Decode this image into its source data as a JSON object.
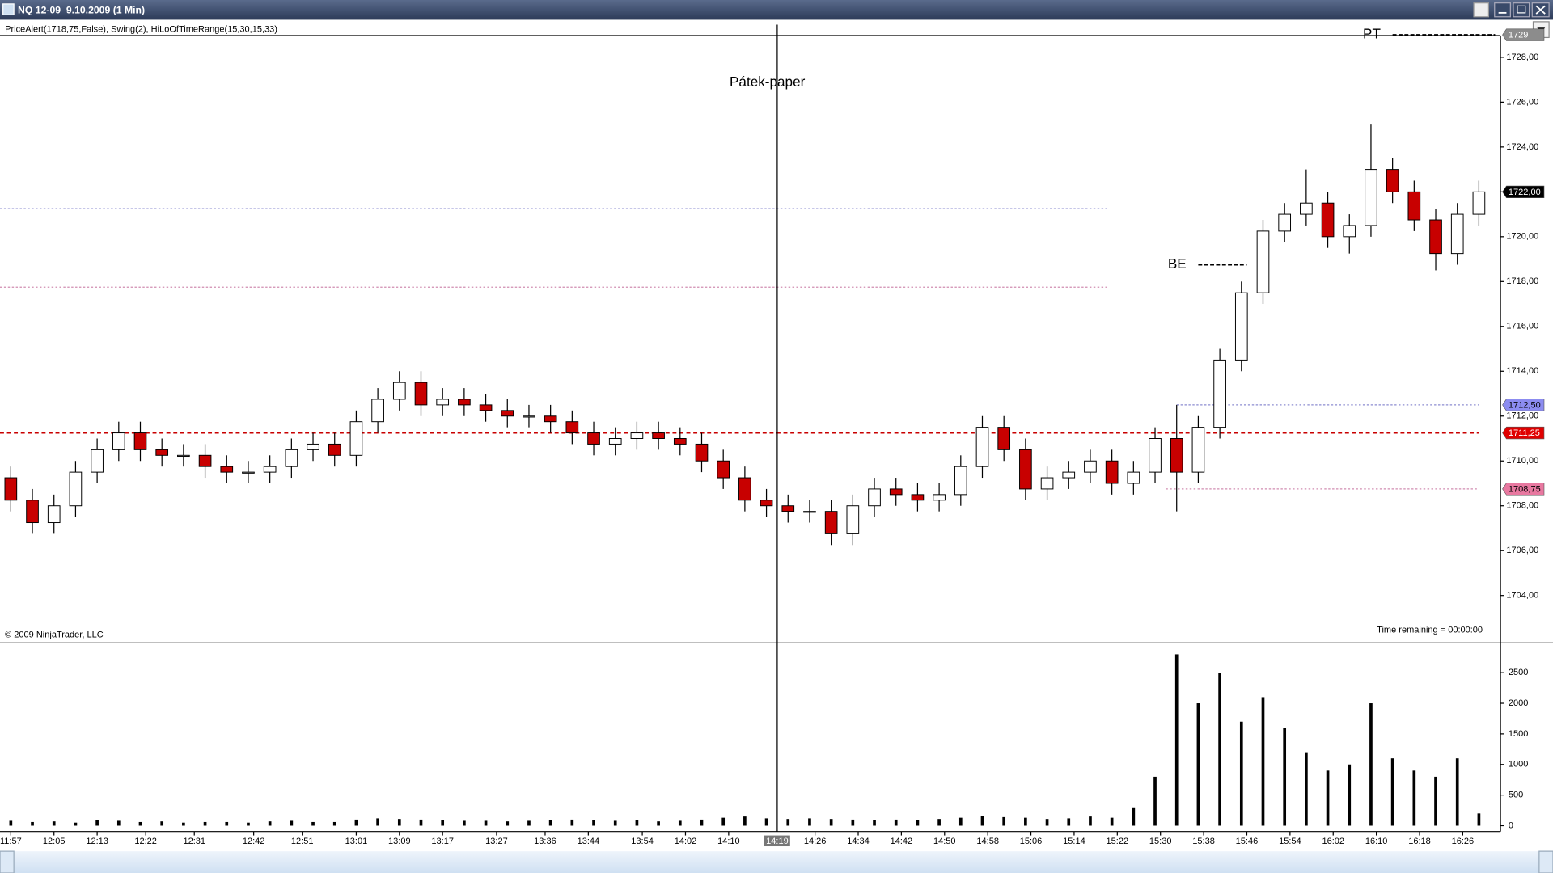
{
  "chart_data": {
    "type": "candlestick",
    "title": "NQ 12-09  9.10.2009 (1 Min)",
    "subtitle": "PriceAlert(1718,75,False), Swing(2), HiLoOfTimeRange(15,30,15,33)",
    "annotation": "Pátek-paper",
    "copyright": "© 2009 NinjaTrader, LLC",
    "time_remaining": "Time remaining = 00:00:00",
    "up_color": "#ffffff",
    "down_color": "#c80000",
    "x": [
      "11:57",
      "12:01",
      "12:05",
      "12:09",
      "12:13",
      "12:17",
      "12:21",
      "12:25",
      "12:29",
      "12:33",
      "12:37",
      "12:41",
      "12:45",
      "12:49",
      "12:53",
      "12:57",
      "13:01",
      "13:05",
      "13:09",
      "13:13",
      "13:17",
      "13:21",
      "13:25",
      "13:29",
      "13:33",
      "13:37",
      "13:41",
      "13:45",
      "13:49",
      "13:53",
      "13:57",
      "14:01",
      "14:05",
      "14:09",
      "14:13",
      "14:17",
      "14:21",
      "14:25",
      "14:29",
      "14:33",
      "14:37",
      "14:41",
      "14:45",
      "14:49",
      "14:53",
      "14:57",
      "15:01",
      "15:05",
      "15:09",
      "15:13",
      "15:17",
      "15:21",
      "15:25",
      "15:29",
      "15:33",
      "15:37",
      "15:41",
      "15:45",
      "15:49",
      "15:53",
      "15:57",
      "16:01",
      "16:05",
      "16:09",
      "16:13",
      "16:17",
      "16:21",
      "16:25",
      "16:29"
    ],
    "open": [
      1709.25,
      1708.25,
      1707.25,
      1708.0,
      1709.5,
      1710.5,
      1711.25,
      1710.5,
      1710.25,
      1710.25,
      1709.75,
      1709.5,
      1709.5,
      1709.75,
      1710.5,
      1710.75,
      1710.25,
      1711.75,
      1712.75,
      1713.5,
      1712.5,
      1712.75,
      1712.5,
      1712.25,
      1712.0,
      1712.0,
      1711.75,
      1711.25,
      1710.75,
      1711.0,
      1711.25,
      1711.0,
      1710.75,
      1710.0,
      1709.25,
      1708.25,
      1708.0,
      1707.75,
      1707.75,
      1706.75,
      1708.0,
      1708.75,
      1708.5,
      1708.25,
      1708.5,
      1709.75,
      1711.5,
      1710.5,
      1708.75,
      1709.25,
      1709.5,
      1710.0,
      1709.0,
      1709.5,
      1711.0,
      1709.5,
      1711.5,
      1714.5,
      1717.5,
      1720.25,
      1721.0,
      1721.5,
      1720.0,
      1720.5,
      1723.0,
      1722.0,
      1720.75,
      1719.25,
      1721.0
    ],
    "high": [
      1709.75,
      1708.75,
      1708.5,
      1710,
      1711,
      1711.75,
      1711.75,
      1711,
      1710.75,
      1710.75,
      1710.25,
      1710,
      1710.25,
      1711,
      1711.25,
      1711.25,
      1712.25,
      1713.25,
      1714,
      1714,
      1713.25,
      1713.25,
      1713,
      1712.75,
      1712.5,
      1712.5,
      1712.25,
      1711.75,
      1711.5,
      1711.75,
      1711.75,
      1711.5,
      1711.25,
      1710.5,
      1709.75,
      1708.75,
      1708.5,
      1708.25,
      1708.25,
      1708.5,
      1709.25,
      1709.25,
      1709,
      1709,
      1710.25,
      1712,
      1712,
      1711,
      1709.75,
      1710,
      1710.5,
      1710.5,
      1710,
      1711.5,
      1712.5,
      1712,
      1715,
      1718,
      1720.75,
      1721.5,
      1723,
      1722,
      1721,
      1725,
      1723.5,
      1722.5,
      1721.25,
      1721.5,
      1722.5
    ],
    "low": [
      1707.75,
      1706.75,
      1706.75,
      1707.5,
      1709,
      1710,
      1710,
      1709.75,
      1709.75,
      1709.25,
      1709,
      1709,
      1709,
      1709.25,
      1710,
      1709.75,
      1709.75,
      1711.25,
      1712.25,
      1712,
      1712,
      1712,
      1711.75,
      1711.5,
      1711.5,
      1711.25,
      1710.75,
      1710.25,
      1710.25,
      1710.5,
      1710.5,
      1710.25,
      1709.5,
      1708.75,
      1707.75,
      1707.5,
      1707.25,
      1707.25,
      1706.25,
      1706.25,
      1707.5,
      1708,
      1707.75,
      1707.75,
      1708,
      1709.25,
      1710,
      1708.25,
      1708.25,
      1708.75,
      1709,
      1708.5,
      1708.5,
      1709,
      1707.75,
      1709,
      1711,
      1714,
      1717,
      1719.75,
      1720.5,
      1719.5,
      1719.25,
      1720,
      1721.5,
      1720.25,
      1718.5,
      1718.75,
      1720.5
    ],
    "close": [
      1708.25,
      1707.25,
      1708.0,
      1709.5,
      1710.5,
      1711.25,
      1710.5,
      1710.25,
      1710.25,
      1709.75,
      1709.5,
      1709.5,
      1709.75,
      1710.5,
      1710.75,
      1710.25,
      1711.75,
      1712.75,
      1713.5,
      1712.5,
      1712.75,
      1712.5,
      1712.25,
      1712.0,
      1712.0,
      1711.75,
      1711.25,
      1710.75,
      1711.0,
      1711.25,
      1711.0,
      1710.75,
      1710.0,
      1709.25,
      1708.25,
      1708.0,
      1707.75,
      1707.75,
      1706.75,
      1708.0,
      1708.75,
      1708.5,
      1708.25,
      1708.5,
      1709.75,
      1711.5,
      1710.5,
      1708.75,
      1709.25,
      1709.5,
      1710.0,
      1709.0,
      1709.5,
      1711.0,
      1709.5,
      1711.5,
      1714.5,
      1717.5,
      1720.25,
      1721.0,
      1721.5,
      1720.0,
      1720.5,
      1723.0,
      1722.0,
      1720.75,
      1719.25,
      1721.0,
      1722.0
    ],
    "xlim": [
      "11:55",
      "16:33"
    ],
    "xticks": [
      "11:57",
      "12:05",
      "12:13",
      "12:22",
      "12:31",
      "12:42",
      "12:51",
      "13:01",
      "13:09",
      "13:17",
      "13:27",
      "13:36",
      "13:44",
      "13:54",
      "14:02",
      "14:10",
      "14:26",
      "14:34",
      "14:42",
      "14:50",
      "14:58",
      "15:06",
      "15:14",
      "15:22",
      "15:30",
      "15:38",
      "15:46",
      "15:54",
      "16:02",
      "16:10",
      "16:18",
      "16:26"
    ],
    "ylim": [
      1701.93,
      1728.97
    ],
    "yticks": [
      {
        "value": 1704,
        "label": "1704,00"
      },
      {
        "value": 1706,
        "label": "1706,00"
      },
      {
        "value": 1708,
        "label": "1708,00"
      },
      {
        "value": 1710,
        "label": "1710,00"
      },
      {
        "value": 1712,
        "label": "1712,00"
      },
      {
        "value": 1714,
        "label": "1714,00"
      },
      {
        "value": 1716,
        "label": "1716,00"
      },
      {
        "value": 1718,
        "label": "1718,00"
      },
      {
        "value": 1720,
        "label": "1720,00"
      },
      {
        "value": 1722,
        "label": "1722,00"
      },
      {
        "value": 1724,
        "label": "1724,00"
      },
      {
        "value": 1726,
        "label": "1726,00"
      },
      {
        "value": 1728,
        "label": "1728,00"
      }
    ],
    "crosshair": "14:19",
    "price_markers": [
      {
        "value": 1729,
        "label": "1729",
        "color": "#8c8c8c"
      },
      {
        "value": 1722,
        "label": "1722,00",
        "color": "#000000"
      },
      {
        "value": 1712.5,
        "label": "1712,50",
        "color": "#8c8cf0"
      },
      {
        "value": 1711.25,
        "label": "1711,25",
        "color": "#e00000"
      },
      {
        "value": 1708.75,
        "label": "1708,75",
        "color": "#e878a0"
      }
    ],
    "levels": [
      {
        "value": 1721.25,
        "color": "#8c8cd0",
        "from": "11:55",
        "to": "15:20"
      },
      {
        "value": 1717.75,
        "color": "#d08cb0",
        "from": "11:55",
        "to": "15:20"
      },
      {
        "value": 1711.25,
        "color": "#c80000",
        "from": "11:55",
        "to": "16:29"
      },
      {
        "value": 1712.5,
        "color": "#8c8cd0",
        "from": "15:33",
        "to": "16:29"
      },
      {
        "value": 1708.75,
        "color": "#d08cb0",
        "from": "15:31",
        "to": "16:29"
      },
      {
        "value": 1729,
        "color": "#000000",
        "from": "16:13",
        "to": "16:32",
        "label": "PT"
      },
      {
        "value": 1718.75,
        "color": "#000000",
        "from": "15:37",
        "to": "15:46",
        "label": "BE"
      }
    ],
    "volume": {
      "color": "#000000",
      "values": [
        80,
        60,
        70,
        50,
        90,
        80,
        60,
        70,
        50,
        60,
        60,
        50,
        70,
        80,
        60,
        60,
        100,
        120,
        110,
        100,
        90,
        80,
        80,
        70,
        80,
        90,
        100,
        90,
        80,
        90,
        70,
        80,
        100,
        130,
        150,
        120,
        110,
        120,
        110,
        100,
        90,
        100,
        90,
        110,
        130,
        160,
        140,
        130,
        110,
        120,
        150,
        130,
        300,
        800,
        2800,
        2000,
        2500,
        1700,
        2100,
        1600,
        1200,
        900,
        1000,
        2000,
        1100,
        900,
        800,
        1100,
        200
      ],
      "ylim": [
        -95,
        2970
      ],
      "yticks": [
        0,
        500,
        1000,
        1500,
        2000,
        2500
      ]
    }
  }
}
